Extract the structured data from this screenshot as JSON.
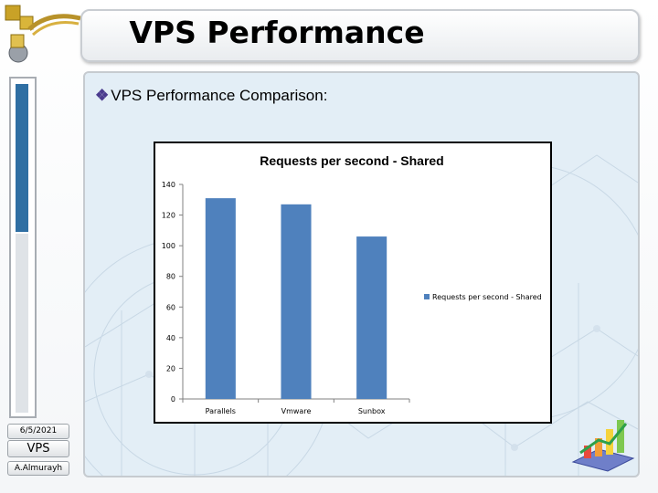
{
  "slide": {
    "title": "VPS Performance",
    "bullet_text": "VPS Performance Comparison",
    "bullet_suffix": ":",
    "date": "6/5/2021",
    "label": "VPS",
    "author": "A.Almurayh"
  },
  "colors": {
    "bar": "#4f81bd",
    "bullet": "#4a3b8e"
  },
  "chart_data": {
    "type": "bar",
    "title": "Requests per second - Shared",
    "categories": [
      "Parallels",
      "Vmware",
      "Sunbox"
    ],
    "series": [
      {
        "name": "Requests per second - Shared",
        "values": [
          131,
          127,
          106
        ]
      }
    ],
    "ylim": [
      0,
      140
    ],
    "yticks": [
      0,
      20,
      40,
      60,
      80,
      100,
      120,
      140
    ],
    "xlabel": "",
    "ylabel": "",
    "legend": "right",
    "grid": false
  }
}
